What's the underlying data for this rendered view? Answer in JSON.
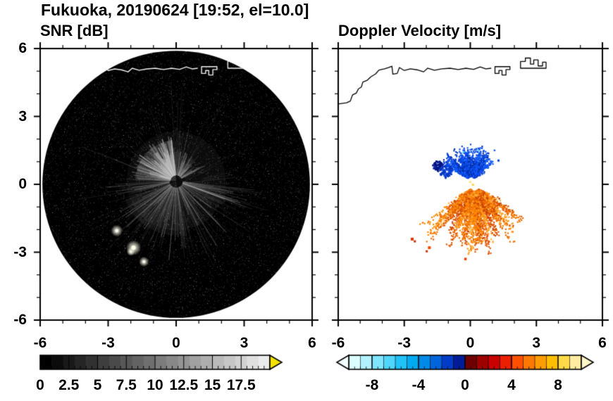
{
  "title": "Fukuoka, 20190624 [19:52, el=10.0]",
  "panels": {
    "snr": {
      "title": "SNR [dB]",
      "xtick_labels": [
        "-6",
        "-3",
        "0",
        "3",
        "6"
      ],
      "xtick_values": [
        -6,
        -3,
        0,
        3,
        6
      ],
      "ytick_labels": [
        "6",
        "3",
        "0",
        "-3",
        "-6"
      ],
      "ytick_values": [
        6,
        3,
        0,
        -3,
        -6
      ]
    },
    "doppler": {
      "title": "Doppler Velocity [m/s]",
      "xtick_labels": [
        "-6",
        "-3",
        "0",
        "3",
        "6"
      ],
      "xtick_values": [
        -6,
        -3,
        0,
        3,
        6
      ]
    }
  },
  "colorbars": {
    "snr": {
      "min": 0,
      "max": 20,
      "segments": 20,
      "shade_start": 0,
      "shade_end": 235,
      "over_arrow_color": "#f2e300",
      "tick_values": [
        0,
        2.5,
        5,
        7.5,
        10,
        12.5,
        15,
        17.5
      ],
      "tick_labels": [
        "0",
        "2.5",
        "5",
        "7.5",
        "10",
        "12.5",
        "15",
        "17.5"
      ],
      "major_step": 2.5,
      "minor_step": 0.5
    },
    "doppler": {
      "min": -10,
      "max": 10,
      "colors": [
        "#dcfdff",
        "#b0f2ff",
        "#80e6ff",
        "#50d6fc",
        "#20c2f8",
        "#00aaf0",
        "#008ae8",
        "#0064dc",
        "#003cc8",
        "#001c96",
        "#6e0000",
        "#9e0000",
        "#c80000",
        "#ea2000",
        "#ff5000",
        "#ff7800",
        "#ff9c00",
        "#ffbe00",
        "#ffda48",
        "#ffeca0"
      ],
      "under_arrow_color": "#f2feff",
      "over_arrow_color": "#fff7c9",
      "tick_values": [
        -8,
        -4,
        0,
        4,
        8
      ],
      "tick_labels": [
        "-8",
        "-4",
        "0",
        "4",
        "8"
      ],
      "major_step": 4,
      "minor_step": 0.5
    }
  },
  "chart_data": {
    "type": "heatmap",
    "title": "Fukuoka, 20190624 [19:52, el=10.0]",
    "description": "Dual-panel Doppler radar PPI scan: left = SNR [dB] (grayscale, 0-20 dB), right = Doppler velocity [m/s] (diverging cyan-blue/red-orange-yellow, -10 to 10 m/s). Axes in km, -6 to 6 both panels.",
    "panels_meta": [
      {
        "name": "snr",
        "title": "SNR [dB]",
        "xlim": [
          -6,
          6
        ],
        "ylim": [
          -6,
          6
        ],
        "xticks": [
          -6,
          -3,
          0,
          3,
          6
        ],
        "yticks": [
          -6,
          -3,
          0,
          3,
          6
        ],
        "colorbar_range": [
          0,
          20
        ],
        "colorbar_ticks": [
          0,
          2.5,
          5,
          7.5,
          10,
          12.5,
          15,
          17.5
        ],
        "colormap": "grayscale with yellow over-arrow"
      },
      {
        "name": "doppler",
        "title": "Doppler Velocity [m/s]",
        "xlim": [
          -6,
          6
        ],
        "ylim": [
          -6,
          6
        ],
        "xticks": [
          -6,
          -3,
          0,
          3,
          6
        ],
        "yticks": [
          -6,
          -3,
          0,
          3,
          6
        ],
        "colorbar_range": [
          -10,
          10
        ],
        "colorbar_ticks": [
          -8,
          -4,
          0,
          4,
          8
        ],
        "colormap": "cyan-blue to dark-red-orange-yellow diverging"
      }
    ],
    "coastline": {
      "mainland": [
        [
          -6.0,
          3.55
        ],
        [
          -5.62,
          3.6
        ],
        [
          -5.45,
          3.68
        ],
        [
          -5.35,
          3.95
        ],
        [
          -5.18,
          4.03
        ],
        [
          -5.08,
          4.22
        ],
        [
          -4.95,
          4.3
        ],
        [
          -4.88,
          4.52
        ],
        [
          -4.68,
          4.6
        ],
        [
          -4.52,
          4.75
        ],
        [
          -4.3,
          4.88
        ],
        [
          -4.15,
          5.05
        ],
        [
          -3.9,
          5.1
        ],
        [
          -3.72,
          5.16
        ],
        [
          -3.56,
          5.22
        ],
        [
          -3.52,
          4.87
        ],
        [
          -3.32,
          4.9
        ],
        [
          -3.22,
          5.16
        ],
        [
          -3.0,
          5.03
        ],
        [
          -2.72,
          5.1
        ],
        [
          -2.42,
          5.06
        ],
        [
          -2.12,
          4.97
        ],
        [
          -1.94,
          5.13
        ],
        [
          -1.63,
          5.04
        ],
        [
          -1.3,
          5.1
        ],
        [
          -0.92,
          5.13
        ],
        [
          -0.55,
          5.07
        ],
        [
          -0.2,
          5.13
        ],
        [
          0.15,
          5.08
        ],
        [
          0.45,
          5.19
        ],
        [
          0.7,
          5.1
        ],
        [
          0.95,
          5.13
        ]
      ],
      "structures": [
        {
          "closed": true,
          "points": [
            [
              1.12,
              5.2
            ],
            [
              1.12,
              4.9
            ],
            [
              1.3,
              4.9
            ],
            [
              1.3,
              5.03
            ],
            [
              1.44,
              5.03
            ],
            [
              1.44,
              4.83
            ],
            [
              1.62,
              4.83
            ],
            [
              1.62,
              5.07
            ],
            [
              1.8,
              5.07
            ],
            [
              1.8,
              5.2
            ]
          ]
        },
        {
          "closed": true,
          "points": [
            [
              2.28,
              5.13
            ],
            [
              2.28,
              5.43
            ],
            [
              2.5,
              5.43
            ],
            [
              2.5,
              5.58
            ],
            [
              2.73,
              5.58
            ],
            [
              2.73,
              5.31
            ],
            [
              2.88,
              5.31
            ],
            [
              2.88,
              5.5
            ],
            [
              3.08,
              5.5
            ],
            [
              3.08,
              5.23
            ],
            [
              3.28,
              5.23
            ],
            [
              3.28,
              5.4
            ],
            [
              3.44,
              5.4
            ],
            [
              3.44,
              5.13
            ]
          ]
        }
      ]
    },
    "snr": {
      "disk": {
        "center": [
          0,
          0
        ],
        "radius": 5.9,
        "background": "#000000"
      },
      "center_offset": [
        0,
        0.15
      ],
      "noise": {
        "speckle_count": 7000,
        "bright_speckle_count": 900,
        "faint_rays": 150
      },
      "sectors": [
        {
          "ang1": 0,
          "ang2": 360,
          "r": 2.2,
          "fill": "rgba(110,110,110,0.10)"
        },
        {
          "ang1": 95,
          "ang2": 178,
          "r": 1.8,
          "fill": "rgba(175,175,175,0.24)"
        },
        {
          "ang1": 200,
          "ang2": 280,
          "r": 2.4,
          "fill": "rgba(140,140,140,0.10)"
        }
      ],
      "fans": [
        {
          "ang1": 95,
          "ang2": 178,
          "r1": 0.25,
          "r2": 2.0,
          "streaks": 110,
          "lw": 1.5,
          "colors": [
            "rgba(215,215,215,0.5)",
            "rgba(185,185,185,0.42)",
            "rgba(155,155,155,0.32)"
          ]
        },
        {
          "ang1": 25,
          "ang2": 95,
          "r1": 0.25,
          "r2": 1.5,
          "streaks": 60,
          "lw": 1.2,
          "colors": [
            "rgba(165,165,165,0.3)",
            "rgba(135,135,135,0.24)"
          ]
        },
        {
          "ang1": 183,
          "ang2": 357,
          "r1": 0.3,
          "r2": 3.6,
          "streaks": 150,
          "lw": 1.1,
          "colors": [
            "rgba(175,175,175,0.3)",
            "rgba(145,145,145,0.22)",
            "rgba(115,115,115,0.16)"
          ]
        }
      ],
      "bright_echoes": [
        {
          "x": -2.62,
          "y": -2.05,
          "size": 3.5,
          "color": "#f8f8f0"
        },
        {
          "x": -1.88,
          "y": -2.8,
          "size": 4.5,
          "color": "#ffffe8"
        },
        {
          "x": -2.0,
          "y": -2.98,
          "size": 2.5,
          "color": "#f0f0e0"
        },
        {
          "x": -1.42,
          "y": -3.42,
          "size": 3.0,
          "color": "#fcfcf4"
        }
      ]
    },
    "doppler": {
      "fans": [
        {
          "name": "approaching-blue",
          "cx": 0.0,
          "cy": 0.25,
          "ang1": 32,
          "ang2": 150,
          "r1": 0.15,
          "r2": 1.55,
          "streaks": 85,
          "core": 520,
          "coreR": 0.85,
          "size": 2.2,
          "colors": [
            "#0845e0",
            "#0a50f0",
            "#0636c0",
            "#1860ff",
            "#042898"
          ]
        },
        {
          "name": "receding-orange",
          "cx": 0.15,
          "cy": -0.1,
          "ang1": 215,
          "ang2": 330,
          "r1": 0.2,
          "r2": 3.1,
          "streaks": 95,
          "core": 360,
          "coreR": 1.25,
          "size": 2.2,
          "colors": [
            "#ff8800",
            "#f07000",
            "#ff9d1c",
            "#e05808",
            "#ffb340",
            "#cc4400"
          ]
        }
      ],
      "blobs": [
        {
          "x": -1.5,
          "y": 0.85,
          "r": 0.24,
          "count": 95,
          "size": 2.2,
          "colors": [
            "#001a9c",
            "#00127a"
          ]
        },
        {
          "x": -1.12,
          "y": 0.6,
          "r": 0.3,
          "count": 110,
          "size": 2.2,
          "colors": [
            "#0845e0",
            "#0636c0"
          ]
        }
      ],
      "specks": [
        {
          "x": -2.64,
          "y": -2.42,
          "size": 4,
          "color": "#e03000"
        },
        {
          "x": -2.52,
          "y": -2.52,
          "size": 3,
          "color": "#c82800"
        },
        {
          "x": -1.86,
          "y": -2.8,
          "size": 4,
          "color": "#ff4400"
        },
        {
          "x": -1.98,
          "y": -2.96,
          "size": 3,
          "color": "#d82e00"
        },
        {
          "x": -0.22,
          "y": -3.3,
          "size": 3.5,
          "color": "#e84000"
        },
        {
          "x": 1.28,
          "y": 1.05,
          "size": 3,
          "color": "#0845e0"
        },
        {
          "x": 1.1,
          "y": 1.5,
          "size": 2.5,
          "color": "#1860ff"
        },
        {
          "x": 0.35,
          "y": 1.5,
          "size": 2.5,
          "color": "#49d6fc"
        },
        {
          "x": -0.3,
          "y": 1.42,
          "size": 2.5,
          "color": "#49d6fc"
        },
        {
          "x": 0.0,
          "y": 0.1,
          "size": 3,
          "color": "#ffe08a"
        },
        {
          "x": 0.12,
          "y": -0.02,
          "size": 3,
          "color": "#ffcf40"
        }
      ]
    }
  }
}
